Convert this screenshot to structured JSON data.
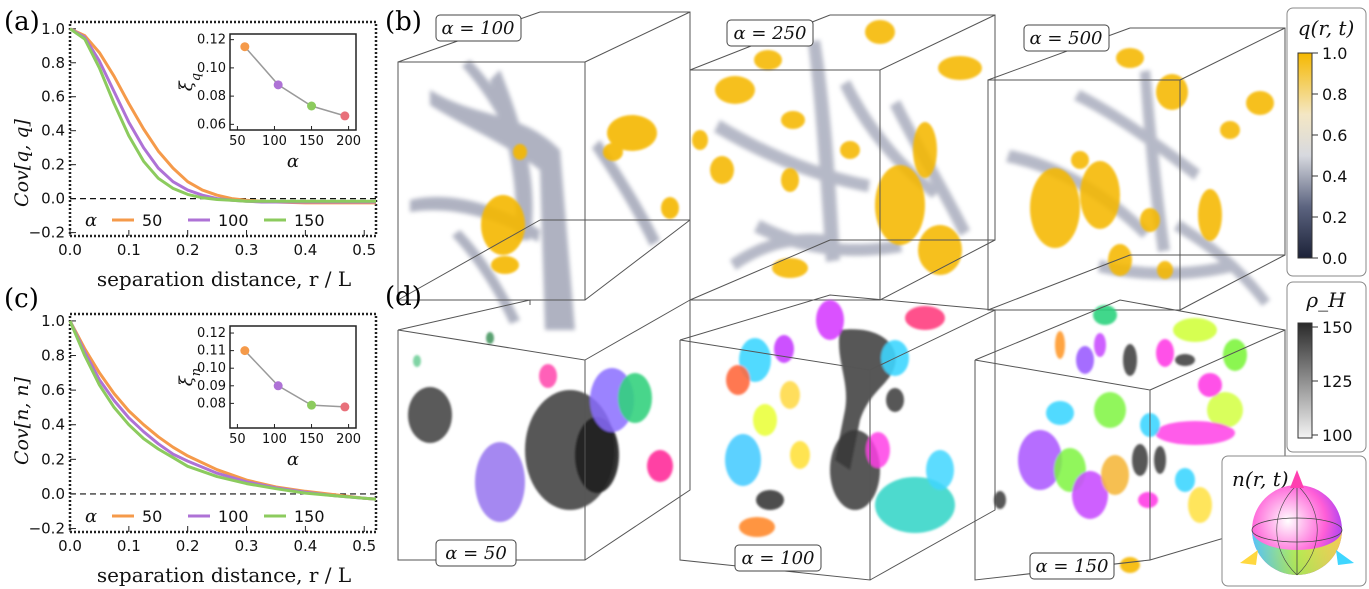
{
  "panels": {
    "a": "(a)",
    "b": "(b)",
    "c": "(c)",
    "d": "(d)"
  },
  "colors": {
    "alpha50": "#f59a4a",
    "alpha100": "#ae72d6",
    "alpha150": "#8ccb5e",
    "yellow": "#f5b800",
    "slate": "#5c6480"
  },
  "plot_a": {
    "ylabel": "Cov[q, q]",
    "xlabel": "separation distance, r / L",
    "legend_symbol": "α",
    "legend": [
      "50",
      "100",
      "150"
    ],
    "inset_ylabel": "ξ_q",
    "inset_xlabel": "α"
  },
  "plot_c": {
    "ylabel": "Cov[n, n]",
    "xlabel": "separation distance, r / L",
    "legend_symbol": "α",
    "legend": [
      "50",
      "100",
      "150"
    ],
    "inset_ylabel": "ξ_n",
    "inset_xlabel": "α"
  },
  "panel_b": {
    "labels": [
      "α = 100",
      "α = 250",
      "α = 500"
    ],
    "colorbar": {
      "title": "q(r, t)",
      "ticks": [
        "1.0",
        "0.8",
        "0.6",
        "0.4",
        "0.2",
        "0.0"
      ]
    }
  },
  "panel_d": {
    "labels": [
      "α = 50",
      "α = 100",
      "α = 150"
    ],
    "colorbar": {
      "title": "ρ_H",
      "ticks": [
        "150",
        "125",
        "100"
      ]
    },
    "sphere_label": "n(r, t)"
  },
  "chart_data": [
    {
      "type": "line",
      "title": "",
      "xlabel": "separation distance, r / L",
      "ylabel": "Cov[q, q]",
      "xlim": [
        0,
        0.52
      ],
      "ylim": [
        -0.22,
        1.04
      ],
      "xticks": [
        "0.0",
        "0.1",
        "0.2",
        "0.3",
        "0.4",
        "0.5"
      ],
      "yticks": [
        "−0.2",
        "0.0",
        "0.2",
        "0.4",
        "0.6",
        "0.8",
        "1.0"
      ],
      "x": [
        0,
        0.025,
        0.05,
        0.075,
        0.1,
        0.125,
        0.15,
        0.175,
        0.2,
        0.225,
        0.25,
        0.275,
        0.3,
        0.325,
        0.35,
        0.4,
        0.45,
        0.5,
        0.52
      ],
      "series": [
        {
          "name": "50",
          "color": "#f59a4a",
          "values": [
            1.0,
            0.96,
            0.86,
            0.72,
            0.56,
            0.41,
            0.28,
            0.18,
            0.1,
            0.05,
            0.02,
            0.0,
            -0.01,
            -0.015,
            -0.02,
            -0.025,
            -0.025,
            -0.025,
            -0.025
          ]
        },
        {
          "name": "100",
          "color": "#ae72d6",
          "values": [
            1.0,
            0.95,
            0.81,
            0.63,
            0.45,
            0.3,
            0.18,
            0.1,
            0.05,
            0.02,
            0.0,
            -0.01,
            -0.015,
            -0.02,
            -0.02,
            -0.02,
            -0.02,
            -0.02,
            -0.02
          ]
        },
        {
          "name": "150",
          "color": "#8ccb5e",
          "values": [
            1.0,
            0.94,
            0.77,
            0.56,
            0.37,
            0.22,
            0.12,
            0.06,
            0.025,
            0.005,
            -0.005,
            -0.01,
            -0.015,
            -0.015,
            -0.015,
            -0.015,
            -0.015,
            -0.015,
            -0.015
          ]
        }
      ],
      "inset": {
        "type": "scatter",
        "xlabel": "α",
        "ylabel": "ξ_q",
        "xlim": [
          40,
          210
        ],
        "ylim": [
          0.056,
          0.124
        ],
        "xticks": [
          "50",
          "100",
          "150",
          "200"
        ],
        "yticks": [
          "0.06",
          "0.08",
          "0.10",
          "0.12"
        ],
        "x": [
          60,
          105,
          150,
          195
        ],
        "y": [
          0.115,
          0.088,
          0.073,
          0.066
        ],
        "point_colors": [
          "#f59a4a",
          "#ae72d6",
          "#8ccb5e",
          "#e8707a"
        ]
      }
    },
    {
      "type": "line",
      "title": "",
      "xlabel": "separation distance, r / L",
      "ylabel": "Cov[n, n]",
      "xlim": [
        0,
        0.52
      ],
      "ylim": [
        -0.22,
        1.04
      ],
      "xticks": [
        "0.0",
        "0.1",
        "0.2",
        "0.3",
        "0.4",
        "0.5"
      ],
      "yticks": [
        "−0.2",
        "0.0",
        "0.2",
        "0.4",
        "0.6",
        "0.8",
        "1.0"
      ],
      "x": [
        0,
        0.025,
        0.05,
        0.075,
        0.1,
        0.125,
        0.15,
        0.175,
        0.2,
        0.25,
        0.3,
        0.35,
        0.4,
        0.45,
        0.5,
        0.52
      ],
      "series": [
        {
          "name": "50",
          "color": "#f59a4a",
          "values": [
            1.0,
            0.84,
            0.7,
            0.58,
            0.48,
            0.4,
            0.33,
            0.27,
            0.22,
            0.14,
            0.08,
            0.04,
            0.015,
            -0.005,
            -0.025,
            -0.03
          ]
        },
        {
          "name": "100",
          "color": "#ae72d6",
          "values": [
            1.0,
            0.82,
            0.66,
            0.54,
            0.44,
            0.36,
            0.29,
            0.23,
            0.19,
            0.12,
            0.07,
            0.035,
            0.01,
            -0.01,
            -0.025,
            -0.03
          ]
        },
        {
          "name": "150",
          "color": "#8ccb5e",
          "values": [
            1.0,
            0.8,
            0.63,
            0.5,
            0.4,
            0.32,
            0.26,
            0.21,
            0.16,
            0.1,
            0.06,
            0.03,
            0.005,
            -0.01,
            -0.025,
            -0.03
          ]
        }
      ],
      "inset": {
        "type": "scatter",
        "xlabel": "α",
        "ylabel": "ξ_n",
        "xlim": [
          40,
          210
        ],
        "ylim": [
          0.066,
          0.124
        ],
        "xticks": [
          "50",
          "100",
          "150",
          "200"
        ],
        "yticks": [
          "0.08",
          "0.09",
          "0.10",
          "0.11",
          "0.12"
        ],
        "x": [
          60,
          105,
          150,
          195
        ],
        "y": [
          0.11,
          0.09,
          0.079,
          0.078
        ],
        "point_colors": [
          "#f59a4a",
          "#ae72d6",
          "#8ccb5e",
          "#e8707a"
        ]
      }
    }
  ]
}
